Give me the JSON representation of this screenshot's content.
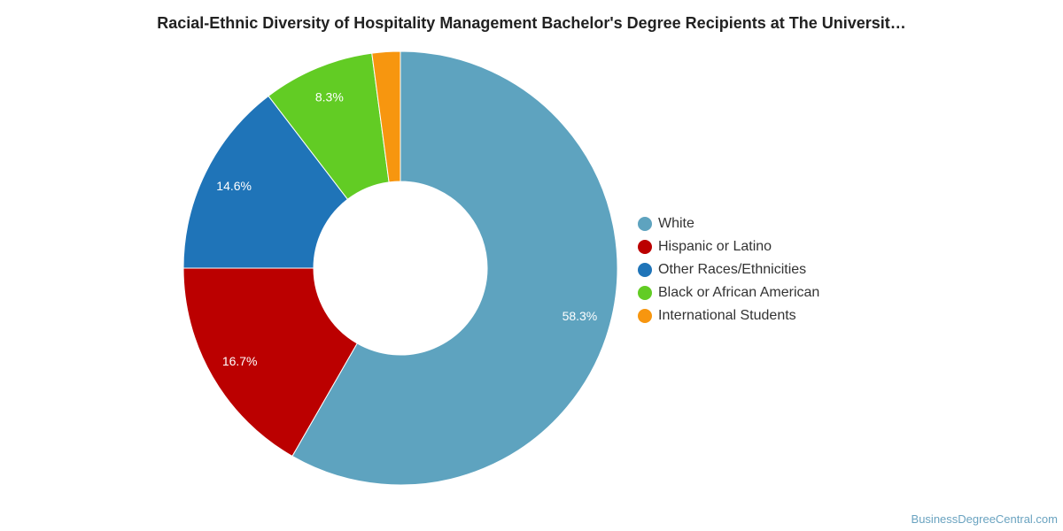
{
  "title": "Racial-Ethnic Diversity of Hospitality Management Bachelor's Degree Recipients at The Universit…",
  "watermark": "BusinessDegreeCentral.com",
  "chart_data": {
    "type": "pie",
    "donut": true,
    "title": "Racial-Ethnic Diversity of Hospitality Management Bachelor's Degree Recipients at The Universit…",
    "legend_position": "right",
    "slices": [
      {
        "name": "White",
        "value": 58.3,
        "label": "58.3%",
        "color": "#5ea3bf"
      },
      {
        "name": "Hispanic or Latino",
        "value": 16.7,
        "label": "16.7%",
        "color": "#bb0000"
      },
      {
        "name": "Other Races/Ethnicities",
        "value": 14.6,
        "label": "14.6%",
        "color": "#1f74b8"
      },
      {
        "name": "Black or African American",
        "value": 8.3,
        "label": "8.3%",
        "color": "#62cc24"
      },
      {
        "name": "International Students",
        "value": 2.1,
        "label": "",
        "color": "#f7960f"
      }
    ]
  }
}
